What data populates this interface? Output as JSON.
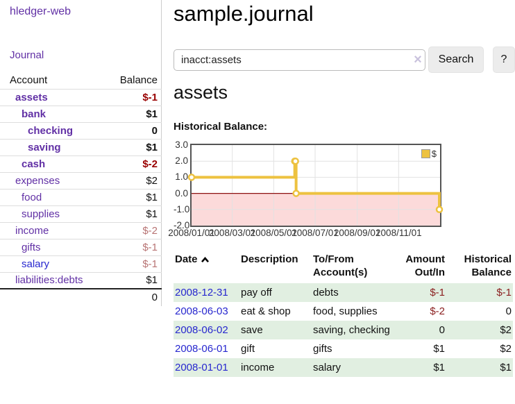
{
  "colors": {
    "link_purple": "#6130a5",
    "link_blue": "#2727cf",
    "negative": "#990000",
    "negative_dim": "#b87474",
    "row_green": "#e1efe1",
    "chart_line": "#edc240",
    "chart_negative_fill": "#fcdada",
    "zero_line": "#8c1010",
    "grid": "#e2e2e2",
    "chart_border": "#545454"
  },
  "sidebar": {
    "brand": "hledger-web",
    "nav_journal": "Journal",
    "accounts_table": {
      "headers": [
        "Account",
        "Balance"
      ],
      "rows": [
        {
          "account": "assets",
          "level": 1,
          "bold": true,
          "balance": "$-1",
          "negative": true,
          "dim": false
        },
        {
          "account": "bank",
          "level": 2,
          "bold": true,
          "balance": "$1",
          "negative": false,
          "dim": false
        },
        {
          "account": "checking",
          "level": 3,
          "bold": true,
          "balance": "0",
          "negative": false,
          "dim": false
        },
        {
          "account": "saving",
          "level": 3,
          "bold": true,
          "balance": "$1",
          "negative": false,
          "dim": false
        },
        {
          "account": "cash",
          "level": 2,
          "bold": true,
          "balance": "$-2",
          "negative": true,
          "dim": false
        },
        {
          "account": "expenses",
          "level": 1,
          "bold": false,
          "balance": "$2",
          "negative": false,
          "dim": false
        },
        {
          "account": "food",
          "level": 2,
          "bold": false,
          "balance": "$1",
          "negative": false,
          "dim": false
        },
        {
          "account": "supplies",
          "level": 2,
          "bold": false,
          "balance": "$1",
          "negative": false,
          "dim": false
        },
        {
          "account": "income",
          "level": 1,
          "bold": false,
          "balance": "$-2",
          "negative": true,
          "dim": true
        },
        {
          "account": "gifts",
          "level": 2,
          "bold": false,
          "balance": "$-1",
          "negative": true,
          "dim": true
        },
        {
          "account": "salary",
          "level": 2,
          "bold": false,
          "balance": "$-1",
          "negative": true,
          "dim": true,
          "link_color": "blue"
        },
        {
          "account": "liabilities:debts",
          "level": 1,
          "bold": false,
          "balance": "$1",
          "negative": false,
          "dim": false
        }
      ],
      "total": "0"
    }
  },
  "main": {
    "title": "sample.journal",
    "search": {
      "value": "inacct:assets",
      "clear_icon": "×",
      "search_button": "Search",
      "help_button": "?"
    },
    "account_heading": "assets",
    "chart_heading": "Historical Balance:",
    "register_table": {
      "sort_icon": "chevron-up",
      "headers": {
        "date": "Date",
        "description": "Description",
        "accounts_line1": "To/From",
        "accounts_line2": "Account(s)",
        "amount_line1": "Amount",
        "amount_line2": "Out/In",
        "balance_line1": "Historical",
        "balance_line2": "Balance"
      },
      "rows": [
        {
          "date": "2008-12-31",
          "description": "pay off",
          "accounts": "debts",
          "amount": "$-1",
          "amount_negative": true,
          "balance": "$-1",
          "balance_negative": true
        },
        {
          "date": "2008-06-03",
          "description": "eat & shop",
          "accounts": "food, supplies",
          "amount": "$-2",
          "amount_negative": true,
          "balance": "0",
          "balance_negative": false
        },
        {
          "date": "2008-06-02",
          "description": "save",
          "accounts": "saving, checking",
          "amount": "0",
          "amount_negative": false,
          "balance": "$2",
          "balance_negative": false
        },
        {
          "date": "2008-06-01",
          "description": "gift",
          "accounts": "gifts",
          "amount": "$1",
          "amount_negative": false,
          "balance": "$2",
          "balance_negative": false
        },
        {
          "date": "2008-01-01",
          "description": "income",
          "accounts": "salary",
          "amount": "$1",
          "amount_negative": false,
          "balance": "$1",
          "balance_negative": false
        }
      ]
    }
  },
  "chart_data": {
    "type": "line",
    "subtype": "step",
    "title": "Historical Balance:",
    "series": [
      {
        "name": "$",
        "color": "#edc240",
        "points": [
          [
            "2008-01-01",
            1
          ],
          [
            "2008-06-01",
            2
          ],
          [
            "2008-06-02",
            2
          ],
          [
            "2008-06-03",
            0
          ],
          [
            "2008-12-31",
            -1
          ]
        ]
      }
    ],
    "x_ticks": [
      "2008/01/01",
      "2008/03/01",
      "2008/05/01",
      "2008/07/01",
      "2008/09/01",
      "2008/11/01"
    ],
    "y_ticks": [
      "3.0",
      "2.0",
      "1.0",
      "0.0",
      "-1.0",
      "-2.0"
    ],
    "ylim": [
      -2,
      3
    ],
    "x_range": [
      "2008-01-01",
      "2009-01-01"
    ],
    "grid": true,
    "legend_position": "top-right",
    "legend_label": "$",
    "negative_region_shaded": true
  }
}
